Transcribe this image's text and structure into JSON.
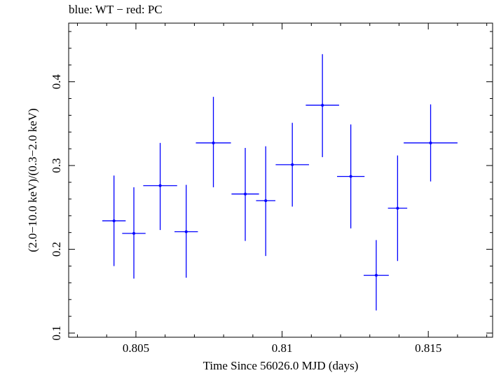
{
  "chart_data": {
    "type": "scatter",
    "title": "blue: WT − red: PC",
    "xlabel": "Time Since 56026.0 MJD (days)",
    "ylabel": "(2.0−10.0 keV)/(0.3−2.0 keV)",
    "xlim": [
      0.8027,
      0.8172
    ],
    "ylim": [
      0.095,
      0.47
    ],
    "x_ticks": [
      0.805,
      0.81,
      0.815
    ],
    "x_tick_labels": [
      "0.805",
      "0.81",
      "0.815"
    ],
    "y_ticks": [
      0.1,
      0.2,
      0.3,
      0.4
    ],
    "y_tick_labels": [
      "0.1",
      "0.2",
      "0.3",
      "0.4"
    ],
    "grid": false,
    "series": [
      {
        "color": "#0000ff",
        "points": [
          {
            "x": 0.80425,
            "y": 0.234,
            "xerr": 0.0004,
            "ylo": 0.18,
            "yhi": 0.288
          },
          {
            "x": 0.80493,
            "y": 0.219,
            "xerr": 0.0004,
            "ylo": 0.165,
            "yhi": 0.274
          },
          {
            "x": 0.80583,
            "y": 0.276,
            "xerr": 0.00058,
            "ylo": 0.223,
            "yhi": 0.327
          },
          {
            "x": 0.80672,
            "y": 0.221,
            "xerr": 0.0004,
            "ylo": 0.166,
            "yhi": 0.277
          },
          {
            "x": 0.80765,
            "y": 0.327,
            "xerr": 0.0006,
            "ylo": 0.274,
            "yhi": 0.382
          },
          {
            "x": 0.80874,
            "y": 0.266,
            "xerr": 0.00047,
            "ylo": 0.21,
            "yhi": 0.321
          },
          {
            "x": 0.80944,
            "y": 0.258,
            "xerr": 0.00033,
            "ylo": 0.192,
            "yhi": 0.323
          },
          {
            "x": 0.81035,
            "y": 0.301,
            "xerr": 0.00057,
            "ylo": 0.251,
            "yhi": 0.351
          },
          {
            "x": 0.81138,
            "y": 0.372,
            "xerr": 0.00057,
            "ylo": 0.31,
            "yhi": 0.433
          },
          {
            "x": 0.81235,
            "y": 0.287,
            "xerr": 0.00047,
            "ylo": 0.225,
            "yhi": 0.349
          },
          {
            "x": 0.81322,
            "y": 0.169,
            "xerr": 0.00043,
            "ylo": 0.127,
            "yhi": 0.211
          },
          {
            "x": 0.81395,
            "y": 0.249,
            "xerr": 0.00033,
            "ylo": 0.186,
            "yhi": 0.312
          },
          {
            "x": 0.81508,
            "y": 0.327,
            "xerr": 0.00092,
            "ylo": 0.281,
            "yhi": 0.373
          }
        ]
      }
    ]
  }
}
